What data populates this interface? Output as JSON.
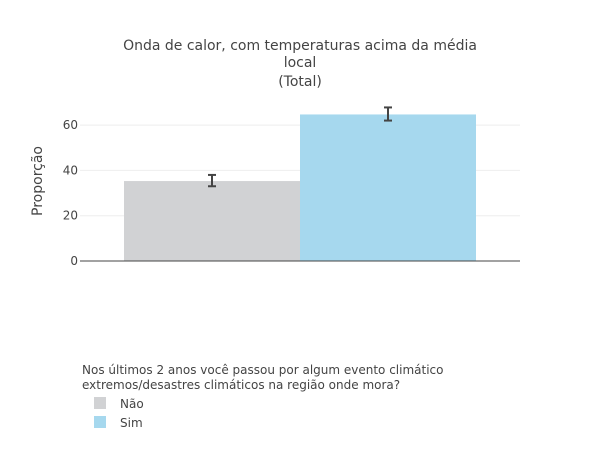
{
  "chart_data": {
    "type": "bar",
    "title": [
      "Onda de calor, com temperaturas acima da média",
      "local",
      "(Total)"
    ],
    "xlabel": "",
    "ylabel": "Proporção",
    "ylim": [
      0,
      70
    ],
    "yticks": [
      0,
      20,
      40,
      60
    ],
    "grid": true,
    "legend": {
      "title": [
        "Nos últimos 2 anos você passou por algum evento climático",
        "extremos/desastres climáticos na região onde mora?"
      ],
      "placement": "bottom-left"
    },
    "series": [
      {
        "name": "Não",
        "value": 35.3,
        "error": [
          33.0,
          38.0
        ],
        "color": "#d1d2d4"
      },
      {
        "name": "Sim",
        "value": 64.7,
        "error": [
          62.0,
          67.8
        ],
        "color": "#a6d8ee"
      }
    ]
  }
}
